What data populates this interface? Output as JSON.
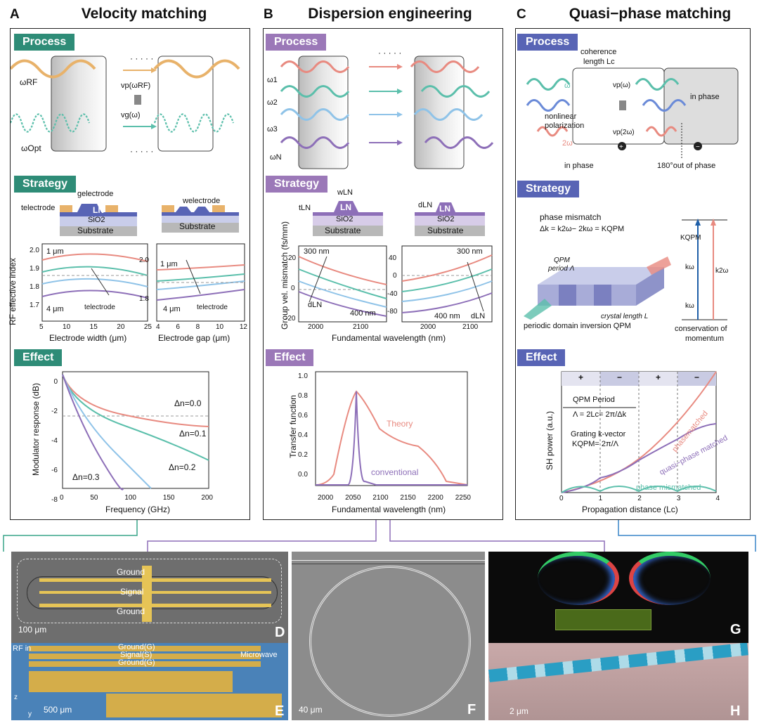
{
  "colors": {
    "teal": "#2e8c77",
    "purple": "#9b78b8",
    "blue": "#5864b5",
    "red": "#e88a80",
    "lightblue": "#8fc3e8",
    "orange": "#e8b26a"
  },
  "panelA": {
    "letter": "A",
    "title": "Velocity matching",
    "process_tag": "Process",
    "strategy_tag": "Strategy",
    "effect_tag": "Effect",
    "omega_rf": "ωRF",
    "omega_opt": "ωOpt",
    "vp": "vp(ωRF)",
    "vg": "vg(ω)",
    "eq": "=",
    "dots": "· · · · ·",
    "g_electrode": "gelectrode",
    "t_electrode": "telectrode",
    "w_electrode": "welectrode",
    "ln": "LN",
    "sio2": "SiO2",
    "substrate": "Substrate",
    "plot1": {
      "ylabel": "RF effective index",
      "xlabel": "Electrode width (μm)",
      "ann_top": "1 μm",
      "ann_bot": "4 μm",
      "ann_t": "telectrode",
      "yticks": [
        "2.0",
        "1.9",
        "1.8",
        "1.7"
      ],
      "xticks": [
        "5",
        "10",
        "15",
        "20",
        "25"
      ]
    },
    "plot2": {
      "xlabel": "Electrode gap (μm)",
      "ann_top": "1 μm",
      "ann_bot": "4 μm",
      "ann_t": "telectrode",
      "yticks": [
        "2.0",
        "1.8"
      ],
      "xticks": [
        "4",
        "6",
        "8",
        "10",
        "12"
      ]
    },
    "plot3": {
      "ylabel": "Modulator response (dB)",
      "xlabel": "Frequency (GHz)",
      "yticks": [
        "0",
        "-2",
        "-4",
        "-6",
        "-8"
      ],
      "xticks": [
        "0",
        "50",
        "100",
        "150",
        "200"
      ],
      "labels": [
        "Δn=0.0",
        "Δn=0.1",
        "Δn=0.2",
        "Δn=0.3"
      ]
    }
  },
  "panelB": {
    "letter": "B",
    "title": "Dispersion engineering",
    "process_tag": "Process",
    "strategy_tag": "Strategy",
    "effect_tag": "Effect",
    "omegas": [
      "ω1",
      "ω2",
      "ω3",
      "ωN"
    ],
    "dots": "· · · · ·",
    "w_ln": "wLN",
    "t_ln": "tLN",
    "d_ln": "dLN",
    "ln": "LN",
    "sio2": "SiO2",
    "substrate": "Substrate",
    "plot1": {
      "ylabel": "Group vel. mismatch (fs/mm)",
      "xlabel": "Fundamental wavelength (nm)",
      "ann300": "300 nm",
      "ann400": "400 nm",
      "dln": "dLN",
      "yticks_left": [
        "20",
        "0",
        "-20"
      ],
      "yticks_right": [
        "40",
        "0",
        "-40",
        "-80"
      ],
      "xticks": [
        "2000",
        "2100"
      ]
    },
    "plot2": {
      "ylabel": "Transfer function",
      "xlabel": "Fundamental wavelength (nm)",
      "yticks": [
        "1.0",
        "0.8",
        "0.6",
        "0.4",
        "0.2",
        "0.0"
      ],
      "xticks": [
        "2000",
        "2050",
        "2100",
        "2150",
        "2200",
        "2250"
      ],
      "theory": "Theory",
      "conventional": "conventional"
    }
  },
  "panelC": {
    "letter": "C",
    "title": "Quasi−phase matching",
    "process_tag": "Process",
    "strategy_tag": "Strategy",
    "effect_tag": "Effect",
    "coherence": "coherence",
    "length": "length Lc",
    "omega": "ω",
    "two_omega": "2ω",
    "vp_w": "vp(ω)",
    "vp_2w": "vp(2ω)",
    "neq": "≠",
    "nonlinear": "nonlinear",
    "polarization": "polarization",
    "in_phase": "in phase",
    "in_phase2": "in phase",
    "out_phase": "180°out of phase",
    "mismatch_title": "phase mismatch",
    "mismatch_eq": "Δk = k2ω− 2kω = KQPM",
    "qpm_period": "QPM",
    "period": "period Λ",
    "crystal": "crystal length L",
    "pdi": "periodic domain inversion QPM",
    "kqpm": "KQPM",
    "kw": "kω",
    "k2w": "k2ω",
    "conservation": "conservation of",
    "momentum": "momentum",
    "plot": {
      "ylabel": "SH power (a.u.)",
      "xlabel": "Propagation distance  (Lc)",
      "xticks": [
        "0",
        "1",
        "2",
        "3",
        "4"
      ],
      "qpm_period": "QPM Period",
      "lambda_eq": "Λ = 2Lc= 2π/Δk",
      "grating": "Grating k-vector",
      "kqpm_eq": "KQPM= 2π/Λ",
      "phasematched": "phasematched",
      "quasi": "quasi−phase matched",
      "mismatched": "phase mismatched",
      "signs": [
        "+",
        "−",
        "+",
        "−"
      ]
    }
  },
  "photos": {
    "D": {
      "letter": "D",
      "ground1": "Ground",
      "signal": "Signal",
      "ground2": "Ground",
      "scale": "100 μm"
    },
    "E": {
      "letter": "E",
      "rf_in": "RF in",
      "g1": "Ground(G)",
      "s": "Signal(S)",
      "g2": "Ground(G)",
      "microwave": "Microwave",
      "scale": "500 μm",
      "z": "z",
      "y": "y"
    },
    "F": {
      "letter": "F",
      "scale": "40 μm"
    },
    "G": {
      "letter": "G"
    },
    "H": {
      "letter": "H",
      "scale": "2 μm"
    }
  }
}
